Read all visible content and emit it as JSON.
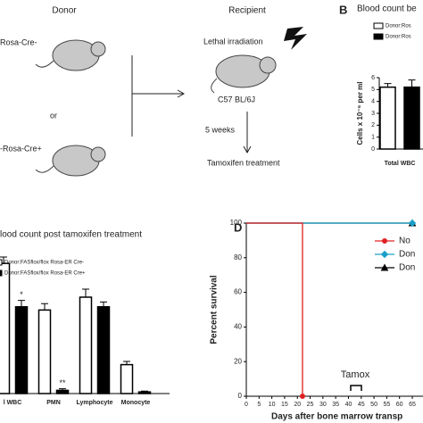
{
  "panel_a": {
    "donor": "Donor",
    "donor_1": "Rosa-Cre-",
    "or": "or",
    "donor_2": "-Rosa-Cre+",
    "recipient": "Recipient",
    "irradiation": "Lethal irradiation",
    "strain": "C57 BL/6J",
    "weeks": "5 weeks",
    "treatment": "Tamoxifen treatment"
  },
  "chart_data": [
    {
      "type": "bar",
      "panel": "B",
      "title": "Blood count be",
      "y_label": "Cells x 10⁻⁶ per ml",
      "categories": [
        "Total WBC"
      ],
      "series": [
        {
          "name": "Donor:Ros",
          "color": "#ffffff",
          "values": [
            5.2
          ],
          "errors": [
            0.3
          ]
        },
        {
          "name": "Donor:Ros",
          "color": "#000000",
          "values": [
            5.2
          ],
          "errors": [
            0.6
          ]
        }
      ],
      "ylim": [
        0,
        6
      ],
      "yticks": [
        0,
        1,
        2,
        3,
        4,
        5,
        6
      ]
    },
    {
      "type": "bar",
      "title": "lood count post tamoxifen treatment",
      "categories": [
        "l WBC",
        "PMN",
        "Lymphocyte",
        "Monocyte"
      ],
      "series": [
        {
          "name": "Donor:FASflox/flox Rosa-ER Cre-",
          "color": "#ffffff",
          "values": [
            8.1,
            5.2,
            6.0,
            1.8
          ],
          "errors": [
            0.4,
            0.4,
            0.5,
            0.2
          ]
        },
        {
          "name": "Donor:FASflox/flox Rosa-ER Cre+",
          "color": "#000000",
          "values": [
            5.4,
            0.2,
            5.4,
            0.1
          ],
          "errors": [
            0.4,
            0.1,
            0.3,
            0.05
          ],
          "sig_labels": [
            "*",
            "**",
            null,
            null
          ]
        }
      ],
      "ylim": [
        0,
        10
      ]
    },
    {
      "type": "line",
      "panel": "D",
      "y_label": "Percent survival",
      "x_label": "Days after bone marrow transp",
      "annotation": "Tamox",
      "series": [
        {
          "name": "No",
          "color": "#e02020",
          "marker": "circle",
          "x": [
            0,
            22,
            22
          ],
          "values": [
            100,
            100,
            0
          ]
        },
        {
          "name": "Don",
          "color": "#1aa0c8",
          "marker": "diamond",
          "x": [
            0,
            65
          ],
          "values": [
            100,
            100
          ]
        },
        {
          "name": "Don",
          "color": "#000000",
          "marker": "triangle",
          "x": [
            0,
            65
          ],
          "values": [
            100,
            100
          ]
        }
      ],
      "xlim": [
        0,
        65
      ],
      "xticks": [
        0,
        5,
        10,
        15,
        20,
        25,
        30,
        35,
        40,
        45,
        50,
        55,
        60,
        65
      ],
      "ylim": [
        0,
        100
      ],
      "yticks": [
        0,
        20,
        40,
        60,
        80,
        100
      ]
    }
  ]
}
